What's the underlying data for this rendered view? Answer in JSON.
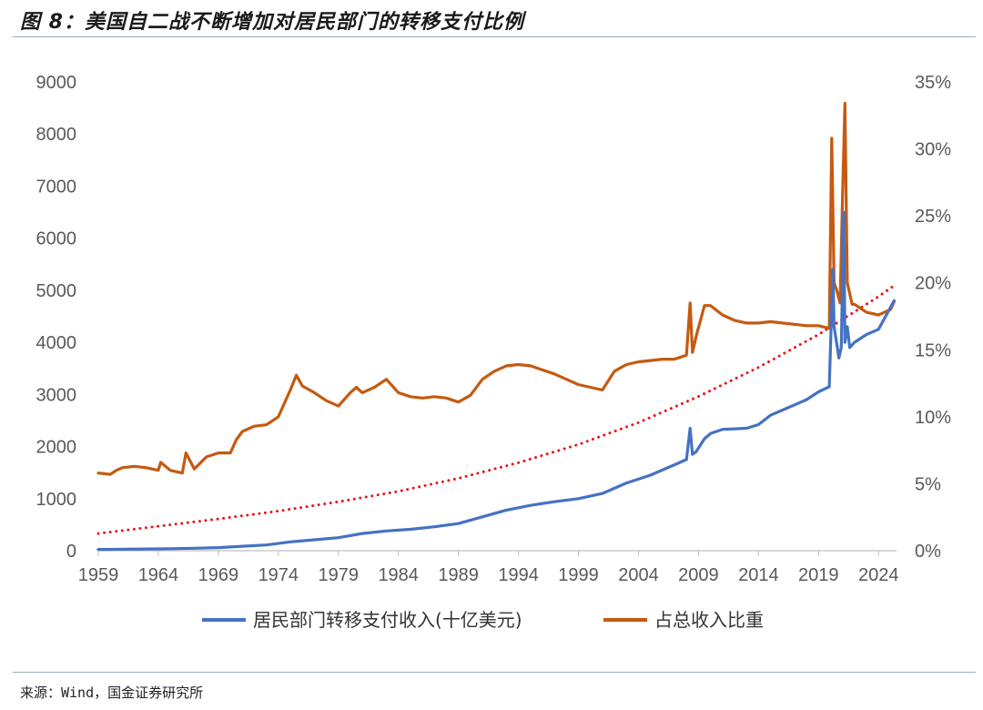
{
  "header": {
    "title": "图 8：美国自二战不断增加对居民部门的转移支付比例"
  },
  "footer": {
    "source": "来源：Wind，国金证券研究所"
  },
  "chart_data": {
    "type": "line",
    "left_axis": {
      "ylim": [
        0,
        9000
      ],
      "ticks": [
        "0",
        "1000",
        "2000",
        "3000",
        "4000",
        "5000",
        "6000",
        "7000",
        "8000",
        "9000"
      ]
    },
    "right_axis": {
      "ylim": [
        0,
        35
      ],
      "ticks": [
        "0%",
        "5%",
        "10%",
        "15%",
        "20%",
        "25%",
        "30%",
        "35%"
      ]
    },
    "x_axis": {
      "xlim": [
        1959,
        2025.5
      ],
      "ticks": [
        "1959",
        "1964",
        "1969",
        "1974",
        "1979",
        "1984",
        "1989",
        "1994",
        "1999",
        "2004",
        "2009",
        "2014",
        "2019",
        "2024"
      ]
    },
    "colors": {
      "transfer": "#4472C4",
      "share": "#C55A11",
      "trend": "#E8161E"
    },
    "legend": [
      {
        "key": "transfer",
        "label": "居民部门转移支付收入(十亿美元)"
      },
      {
        "key": "share",
        "label": "占总收入比重"
      }
    ],
    "series": [
      {
        "name": "居民部门转移支付收入(十亿美元)",
        "axis": "left",
        "color": "#4472C4",
        "x": [
          1959,
          1961,
          1963,
          1965,
          1967,
          1969,
          1971,
          1973,
          1975,
          1977,
          1979,
          1981,
          1983,
          1985,
          1987,
          1989,
          1991,
          1993,
          1995,
          1997,
          1999,
          2001,
          2003,
          2005,
          2007,
          2008.0,
          2008.3,
          2008.5,
          2008.8,
          2009.5,
          2010,
          2011,
          2012,
          2013,
          2014,
          2015,
          2016,
          2017,
          2018,
          2019,
          2019.9,
          2020.2,
          2020.3,
          2020.5,
          2020.7,
          2020.9,
          2021.1,
          2021.2,
          2021.4,
          2021.6,
          2022,
          2023,
          2024,
          2025.3
        ],
        "y": [
          25,
          28,
          33,
          38,
          48,
          60,
          85,
          110,
          170,
          210,
          250,
          330,
          380,
          410,
          460,
          520,
          650,
          780,
          870,
          940,
          1000,
          1100,
          1300,
          1450,
          1650,
          1750,
          2350,
          1850,
          1900,
          2150,
          2250,
          2330,
          2340,
          2350,
          2420,
          2600,
          2700,
          2800,
          2900,
          3050,
          3150,
          5400,
          4300,
          4000,
          3700,
          3900,
          6500,
          4000,
          4300,
          3900,
          4000,
          4150,
          4250,
          4800
        ]
      },
      {
        "name": "占总收入比重",
        "axis": "right",
        "color": "#C55A11",
        "x": [
          1959,
          1960,
          1960.5,
          1961,
          1962,
          1963,
          1964,
          1964.2,
          1965,
          1966,
          1966.3,
          1967,
          1968,
          1969,
          1970,
          1970.5,
          1971,
          1972,
          1973,
          1974,
          1975,
          1975.5,
          1976,
          1977,
          1978,
          1979,
          1980,
          1980.5,
          1981,
          1982,
          1983,
          1984,
          1985,
          1986,
          1987,
          1988,
          1989,
          1990,
          1991,
          1992,
          1993,
          1994,
          1995,
          1996,
          1997,
          1998,
          1999,
          2000,
          2001,
          2002,
          2003,
          2004,
          2005,
          2006,
          2007,
          2008.0,
          2008.3,
          2008.5,
          2008.8,
          2009.5,
          2010,
          2011,
          2012,
          2013,
          2014,
          2015,
          2016,
          2017,
          2018,
          2019,
          2019.9,
          2020.1,
          2020.3,
          2020.5,
          2020.8,
          2021.0,
          2021.2,
          2021.4,
          2021.8,
          2022,
          2023,
          2024,
          2025.0,
          2025.3
        ],
        "y": [
          5.8,
          5.7,
          6.0,
          6.2,
          6.3,
          6.2,
          6.0,
          6.6,
          6.0,
          5.8,
          7.3,
          6.1,
          7.0,
          7.3,
          7.3,
          8.3,
          8.9,
          9.3,
          9.4,
          10.0,
          12.0,
          13.1,
          12.3,
          11.8,
          11.2,
          10.8,
          11.8,
          12.2,
          11.8,
          12.2,
          12.8,
          11.8,
          11.5,
          11.4,
          11.5,
          11.4,
          11.1,
          11.6,
          12.8,
          13.4,
          13.8,
          13.9,
          13.8,
          13.5,
          13.2,
          12.8,
          12.4,
          12.2,
          12.0,
          13.4,
          13.9,
          14.1,
          14.2,
          14.3,
          14.3,
          14.6,
          18.5,
          14.8,
          16.0,
          18.3,
          18.3,
          17.6,
          17.2,
          17.0,
          17.0,
          17.1,
          17.0,
          16.9,
          16.8,
          16.8,
          16.6,
          30.8,
          20.0,
          19.5,
          18.5,
          26.5,
          33.4,
          20.0,
          18.4,
          18.4,
          17.8,
          17.6,
          18.0,
          18.6
        ]
      },
      {
        "name": "trend",
        "axis": "left",
        "color": "#E8161E",
        "style": "dotted",
        "x": [
          1959,
          1964,
          1969,
          1974,
          1979,
          1984,
          1989,
          1994,
          1999,
          2004,
          2009,
          2014,
          2019,
          2024,
          2025.3
        ],
        "y": [
          330,
          470,
          610,
          760,
          940,
          1140,
          1390,
          1690,
          2040,
          2460,
          2960,
          3520,
          4150,
          4880,
          5090
        ]
      }
    ]
  }
}
